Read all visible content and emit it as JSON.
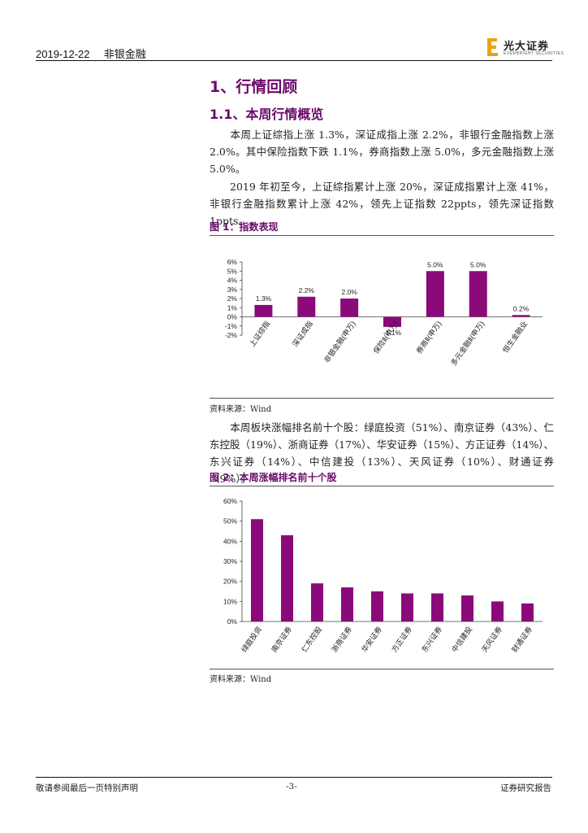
{
  "header": {
    "date": "2019-12-22",
    "category": "非银金融",
    "brand": "光大证券",
    "brand_en": "EVERBRIGHT SECURITIES"
  },
  "section": {
    "h1": "1、行情回顾",
    "h2": "1.1、本周行情概览"
  },
  "paragraphs": [
    "本周上证综指上涨 1.3%，深证成指上涨 2.2%，非银行金融指数上涨 2.0%。其中保险指数下跌 1.1%，券商指数上涨 5.0%，多元金融指数上涨 5.0%。",
    "2019 年初至今，上证综指累计上涨 20%，深证成指累计上涨 41%，非银行金融指数累计上涨 42%，领先上证指数 22ppts，领先深证指数 1ppts。",
    "本周板块涨幅排名前十个股：绿庭投资（51%）、南京证券（43%）、仁东控股（19%）、浙商证券（17%）、华安证券（15%）、方正证券（14%）、东兴证券（14%）、中信建投（13%）、天风证券（10%）、财通证券（9%）。"
  ],
  "figures": [
    {
      "title": "图 1：指数表现",
      "source": "资料来源：Wind"
    },
    {
      "title": "图 2：本周涨幅排名前十个股",
      "source": "资料来源：Wind"
    }
  ],
  "chart_data": [
    {
      "type": "bar",
      "categories": [
        "上证综指",
        "深证成指",
        "非银金融(申万)",
        "保险Ⅱ(申万)",
        "券商Ⅱ(申万)",
        "多元金融Ⅱ(申万)",
        "恒生金融业"
      ],
      "values": [
        1.3,
        2.2,
        2.0,
        -1.1,
        5.0,
        5.0,
        0.2
      ],
      "labels": [
        "1.3%",
        "2.2%",
        "2.0%",
        "-1.1%",
        "5.0%",
        "5.0%",
        "0.2%"
      ],
      "yticks": [
        "6%",
        "5%",
        "4%",
        "3%",
        "2%",
        "1%",
        "0%",
        "-1%",
        "-2%"
      ],
      "ylim": [
        -2,
        6
      ],
      "grid": false,
      "color": "#8b0a7a"
    },
    {
      "type": "bar",
      "categories": [
        "绿庭投资",
        "南京证券",
        "仁东控股",
        "浙商证券",
        "华安证券",
        "方正证券",
        "东兴证券",
        "中信建投",
        "天风证券",
        "财通证券"
      ],
      "values": [
        51,
        43,
        19,
        17,
        15,
        14,
        14,
        13,
        10,
        9
      ],
      "yticks": [
        "60%",
        "50%",
        "40%",
        "30%",
        "20%",
        "10%",
        "0%"
      ],
      "ylim": [
        0,
        60
      ],
      "grid": false,
      "color": "#8b0a7a"
    }
  ],
  "footer": {
    "left": "敬请参阅最后一页特别声明",
    "center": "-3-",
    "right": "证券研究报告"
  }
}
